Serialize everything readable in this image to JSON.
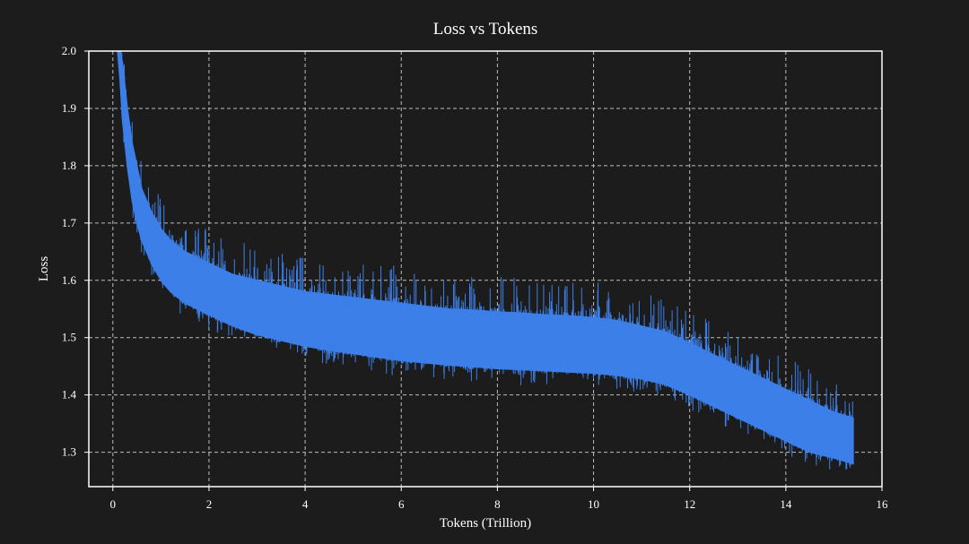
{
  "chart_data": {
    "type": "line",
    "title": "Loss vs Tokens",
    "xlabel": "Tokens (Trillion)",
    "ylabel": "Loss",
    "xlim": [
      -0.5,
      16
    ],
    "ylim": [
      1.24,
      2.0
    ],
    "xticks": [
      "0",
      "2",
      "4",
      "6",
      "8",
      "10",
      "12",
      "14",
      "16"
    ],
    "yticks": [
      "1.3",
      "1.4",
      "1.5",
      "1.6",
      "1.7",
      "1.8",
      "1.9",
      "2.0"
    ],
    "grid": true,
    "line_color": "#3d7fe8",
    "series": [
      {
        "x": [
          0.1,
          0.15,
          0.2,
          0.3,
          0.4,
          0.5,
          0.6,
          0.8,
          1.0,
          1.2,
          1.5,
          2.0,
          2.5,
          3.0,
          3.5,
          4.0,
          4.5,
          5.0,
          5.5,
          6.0,
          6.5,
          7.0,
          7.5,
          8.0,
          8.5,
          9.0,
          9.5,
          10.0,
          10.5,
          11.0,
          11.5,
          12.0,
          12.5,
          13.0,
          13.5,
          14.0,
          14.5,
          15.0,
          15.4
        ],
        "upper": [
          2.0,
          2.0,
          1.98,
          1.9,
          1.84,
          1.8,
          1.76,
          1.72,
          1.69,
          1.67,
          1.65,
          1.63,
          1.61,
          1.6,
          1.59,
          1.58,
          1.575,
          1.57,
          1.565,
          1.56,
          1.555,
          1.55,
          1.548,
          1.545,
          1.543,
          1.54,
          1.538,
          1.535,
          1.53,
          1.52,
          1.51,
          1.49,
          1.47,
          1.45,
          1.43,
          1.41,
          1.39,
          1.37,
          1.36
        ],
        "lower": [
          2.0,
          1.95,
          1.88,
          1.8,
          1.74,
          1.7,
          1.67,
          1.63,
          1.6,
          1.58,
          1.56,
          1.54,
          1.52,
          1.505,
          1.495,
          1.485,
          1.478,
          1.472,
          1.466,
          1.46,
          1.456,
          1.452,
          1.449,
          1.446,
          1.444,
          1.442,
          1.44,
          1.438,
          1.434,
          1.428,
          1.418,
          1.4,
          1.38,
          1.36,
          1.34,
          1.32,
          1.3,
          1.29,
          1.28
        ]
      }
    ]
  }
}
